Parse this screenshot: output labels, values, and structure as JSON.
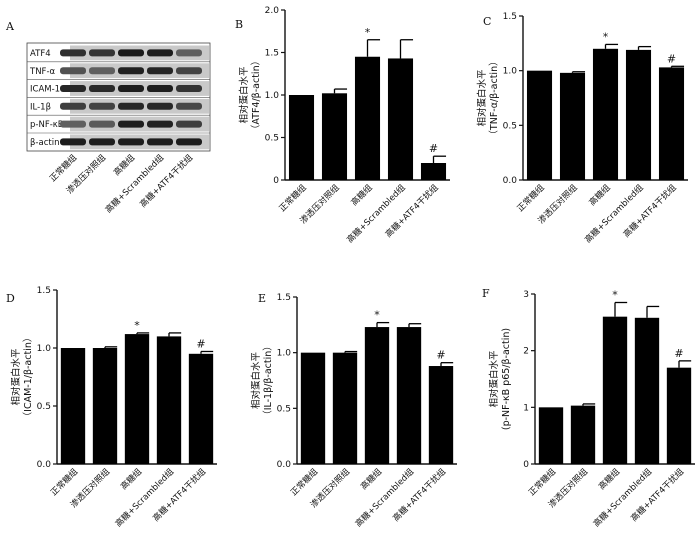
{
  "categories": [
    "正常糖组",
    "渗透压对照组",
    "高糖组",
    "高糖+Scrambled组",
    "高糖+ATF4干扰组"
  ],
  "blot": {
    "panel_label": "A",
    "rows": [
      "ATF4",
      "TNF-α",
      "ICAM-1",
      "IL-1β",
      "p-NF-κB",
      "β-actin"
    ]
  },
  "chart_data": [
    {
      "panel": "B",
      "type": "bar",
      "ylabel_line1": "相对蛋白水平",
      "ylabel_line2": "（ATF4/β-actin）",
      "ylim": [
        0,
        2.0
      ],
      "yticks": [
        "0",
        "0.5",
        "1.0",
        "1.5",
        "2.0"
      ],
      "ytick_values": [
        0,
        0.5,
        1.0,
        1.5,
        2.0
      ],
      "values": [
        1.0,
        1.02,
        1.45,
        1.43,
        0.2
      ],
      "errors": [
        0,
        0.05,
        0.2,
        0.22,
        0.08
      ],
      "marks": [
        "",
        "",
        "*",
        "",
        "#"
      ]
    },
    {
      "panel": "C",
      "type": "bar",
      "ylabel_line1": "相对蛋白水平",
      "ylabel_line2": "（TNF-α/β-actin）",
      "ylim": [
        0,
        1.5
      ],
      "yticks": [
        "0.0",
        "0.5",
        "1.0",
        "1.5"
      ],
      "ytick_values": [
        0,
        0.5,
        1.0,
        1.5
      ],
      "values": [
        1.0,
        0.98,
        1.2,
        1.19,
        1.03
      ],
      "errors": [
        0,
        0.01,
        0.04,
        0.03,
        0.01
      ],
      "marks": [
        "",
        "",
        "*",
        "",
        "#"
      ]
    },
    {
      "panel": "D",
      "type": "bar",
      "ylabel_line1": "相对蛋白水平",
      "ylabel_line2": "（ICAM-1/β-actin）",
      "ylim": [
        0,
        1.5
      ],
      "yticks": [
        "0.0",
        "0.5",
        "1.0",
        "1.5"
      ],
      "ytick_values": [
        0,
        0.5,
        1.0,
        1.5
      ],
      "values": [
        1.0,
        1.0,
        1.12,
        1.1,
        0.95
      ],
      "errors": [
        0,
        0.01,
        0.01,
        0.03,
        0.02
      ],
      "marks": [
        "",
        "",
        "*",
        "",
        "#"
      ]
    },
    {
      "panel": "E",
      "type": "bar",
      "ylabel_line1": "相对蛋白水平",
      "ylabel_line2": "（IL-1β/β-actin）",
      "ylim": [
        0,
        1.5
      ],
      "yticks": [
        "0.0",
        "0.5",
        "1.0",
        "1.5"
      ],
      "ytick_values": [
        0,
        0.5,
        1.0,
        1.5
      ],
      "values": [
        1.0,
        1.0,
        1.23,
        1.23,
        0.88
      ],
      "errors": [
        0,
        0.01,
        0.04,
        0.03,
        0.03
      ],
      "marks": [
        "",
        "",
        "*",
        "",
        "#"
      ]
    },
    {
      "panel": "F",
      "type": "bar",
      "ylabel_line1": "相对蛋白水平",
      "ylabel_line2": "(p-NF-κB p65/β-actin)",
      "ylim": [
        0,
        3
      ],
      "yticks": [
        "0",
        "1",
        "2",
        "3"
      ],
      "ytick_values": [
        0,
        1,
        2,
        3
      ],
      "values": [
        1.0,
        1.03,
        2.6,
        2.58,
        1.7
      ],
      "errors": [
        0,
        0.03,
        0.25,
        0.2,
        0.12
      ],
      "marks": [
        "",
        "",
        "*",
        "",
        "#"
      ]
    }
  ]
}
